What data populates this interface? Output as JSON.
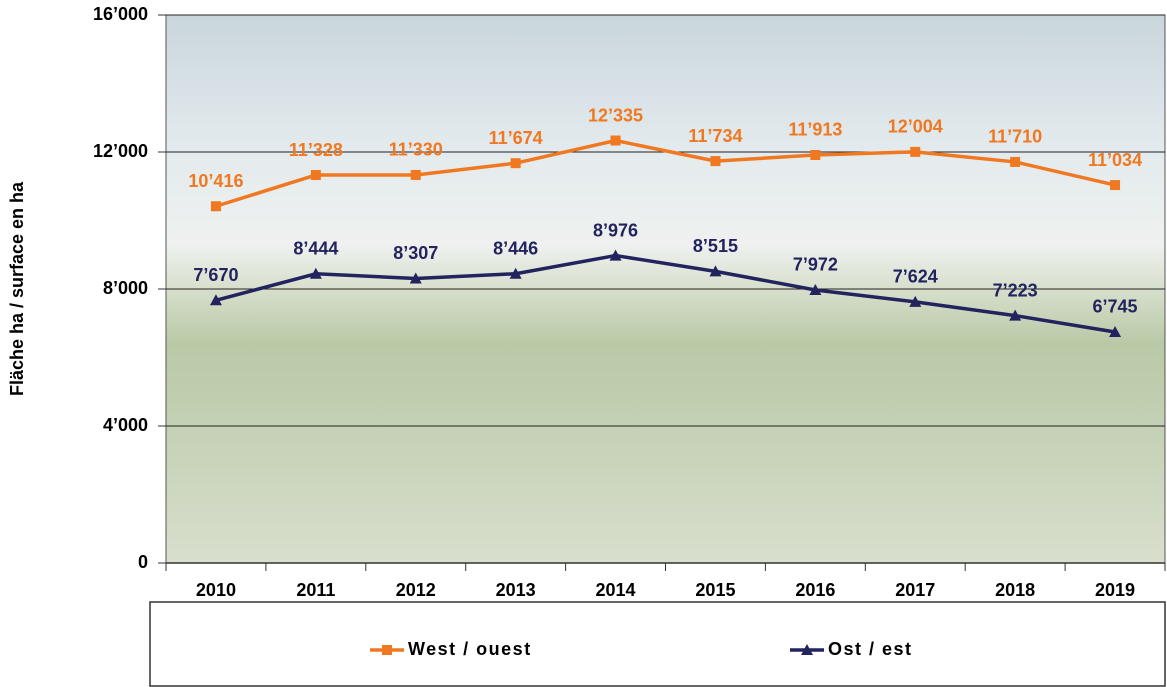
{
  "chart_data": {
    "type": "line",
    "y_label": "Fläche ha / surface en ha",
    "categories": [
      "2010",
      "2011",
      "2012",
      "2013",
      "2014",
      "2015",
      "2016",
      "2017",
      "2018",
      "2019"
    ],
    "series": [
      {
        "name": "West / ouest",
        "color": "#f07820",
        "marker": "square",
        "values": [
          10416,
          11328,
          11330,
          11674,
          12335,
          11734,
          11913,
          12004,
          11710,
          11034
        ],
        "value_labels": [
          "10’416",
          "11’328",
          "11’330",
          "11’674",
          "12’335",
          "11’734",
          "11’913",
          "12’004",
          "11’710",
          "11’034"
        ]
      },
      {
        "name": "Ost / est",
        "color": "#23235e",
        "marker": "triangle",
        "values": [
          7670,
          8444,
          8307,
          8446,
          8976,
          8515,
          7972,
          7624,
          7223,
          6745
        ],
        "value_labels": [
          "7’670",
          "8’444",
          "8’307",
          "8’446",
          "8’976",
          "8’515",
          "7’972",
          "7’624",
          "7’223",
          "6’745"
        ]
      }
    ],
    "ylim": [
      0,
      16000
    ],
    "yticks": [
      {
        "value": 0,
        "label": "0"
      },
      {
        "value": 4000,
        "label": "4’000"
      },
      {
        "value": 8000,
        "label": "8’000"
      },
      {
        "value": 12000,
        "label": "12’000"
      },
      {
        "value": 16000,
        "label": "16’000"
      }
    ],
    "grid": true,
    "legend": "bottom"
  }
}
